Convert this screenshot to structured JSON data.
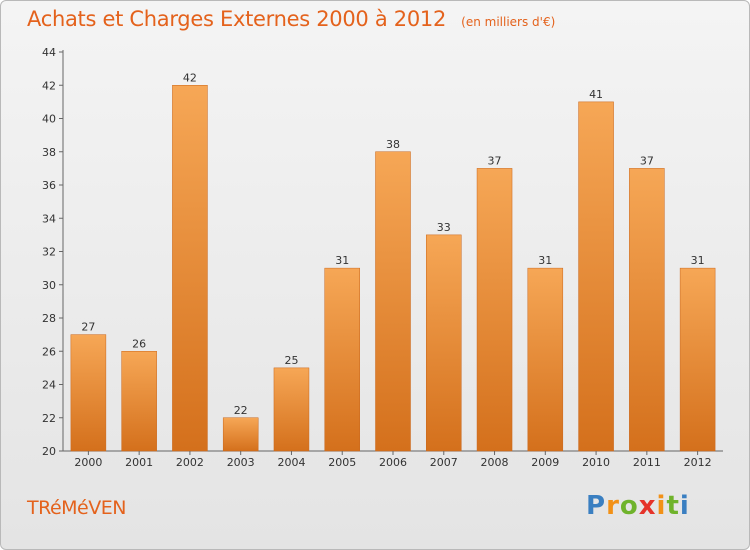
{
  "header": {
    "title": "Achats et Charges Externes 2000 à 2012",
    "subtitle": "(en milliers d'€)"
  },
  "footer": {
    "commune": "TRéMéVEN",
    "brand": "Proxiti"
  },
  "colors": {
    "accent": "#e4621c",
    "bar_top": "#f6a756",
    "bar_bottom": "#d4701c"
  },
  "chart_data": {
    "type": "bar",
    "title": "Achats et Charges Externes 2000 à 2012",
    "subtitle": "(en milliers d'€)",
    "categories": [
      "2000",
      "2001",
      "2002",
      "2003",
      "2004",
      "2005",
      "2006",
      "2007",
      "2008",
      "2009",
      "2010",
      "2011",
      "2012"
    ],
    "values": [
      27,
      26,
      42,
      22,
      25,
      31,
      38,
      33,
      37,
      31,
      41,
      37,
      31
    ],
    "ylim": [
      20,
      44
    ],
    "yticks": [
      20,
      22,
      24,
      26,
      28,
      30,
      32,
      34,
      36,
      38,
      40,
      42,
      44
    ],
    "grid": false,
    "legend": "none",
    "xlabel": "",
    "ylabel": ""
  }
}
